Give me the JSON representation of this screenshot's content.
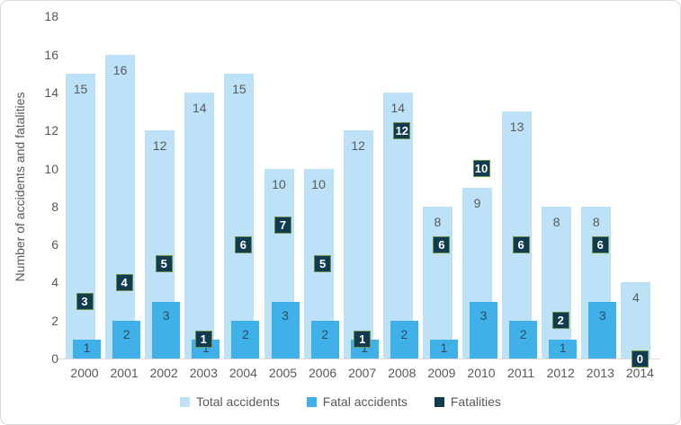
{
  "chart_data": {
    "type": "bar",
    "title": "",
    "xlabel": "",
    "ylabel": "Number of accidents and fatalities",
    "categories": [
      "2000",
      "2001",
      "2002",
      "2003",
      "2004",
      "2005",
      "2006",
      "2007",
      "2008",
      "2009",
      "2010",
      "2011",
      "2012",
      "2013",
      "2014"
    ],
    "series": [
      {
        "name": "Total accidents",
        "values": [
          15,
          16,
          12,
          14,
          15,
          10,
          10,
          12,
          14,
          8,
          9,
          13,
          8,
          8,
          4
        ],
        "color": "#bde2f7",
        "label_color": "#595959"
      },
      {
        "name": "Fatal accidents",
        "values": [
          1,
          2,
          3,
          1,
          2,
          3,
          2,
          1,
          2,
          1,
          3,
          2,
          1,
          3,
          0
        ],
        "color": "#3fb0e8",
        "label_color": "#2e4b60"
      },
      {
        "name": "Fatalities",
        "values": [
          3,
          4,
          5,
          1,
          6,
          7,
          5,
          1,
          12,
          6,
          10,
          6,
          2,
          6,
          0
        ],
        "color": "#113c4f",
        "border_color": "#6f8f4a",
        "label_color": "#ffffff",
        "label_style": "dark-box"
      }
    ],
    "ylim": [
      0,
      18
    ],
    "yticks": [
      0,
      2,
      4,
      6,
      8,
      10,
      12,
      14,
      16,
      18
    ],
    "grid": false,
    "legend_position": "bottom",
    "axis_color": "#d9d9d9",
    "tick_text_color": "#595959"
  }
}
